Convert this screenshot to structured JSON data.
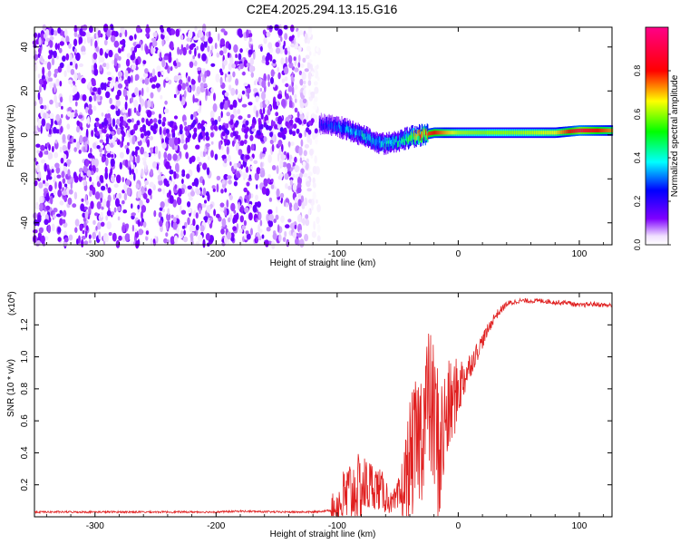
{
  "chart_data": [
    {
      "type": "heatmap",
      "title": "C2E4.2025.294.13.15.G16",
      "xlabel": "Height of straight line (km)",
      "ylabel": "Frequency (Hz)",
      "xlim": [
        -350,
        127
      ],
      "ylim": [
        -50,
        49
      ],
      "xticks": [
        -300,
        -200,
        -100,
        0,
        100
      ],
      "yticks": [
        -40,
        -20,
        0,
        20,
        40
      ],
      "colorbar": {
        "label": "Normalized spectral amplitude",
        "range": [
          0,
          1
        ],
        "ticks": [
          "0.0",
          "0.2",
          "0.4",
          "0.6",
          "0.8"
        ],
        "colors": [
          "#ffffff",
          "#7f00ff",
          "#0000ff",
          "#00ffff",
          "#00ff00",
          "#ffff00",
          "#ff0000",
          "#ff0088"
        ]
      },
      "noise_region": {
        "x_range": [
          -350,
          -115
        ],
        "freq_range": [
          -50,
          49
        ],
        "amplitude": 0.1
      },
      "ridge": {
        "x": [
          -115,
          -100,
          -90,
          -80,
          -70,
          -60,
          -50,
          -45,
          -40,
          -30,
          -20,
          -10,
          0,
          20,
          40,
          60,
          80,
          100,
          127
        ],
        "freq": [
          5,
          4,
          2,
          0,
          -3,
          -4,
          -3,
          -2,
          -1,
          0,
          1,
          1,
          1,
          1,
          1,
          1,
          1,
          2,
          2
        ],
        "amplitude": [
          0.22,
          0.3,
          0.35,
          0.38,
          0.38,
          0.4,
          0.42,
          0.45,
          0.55,
          0.75,
          0.8,
          0.7,
          0.62,
          0.6,
          0.6,
          0.62,
          0.66,
          0.9,
          0.72
        ]
      }
    },
    {
      "type": "line",
      "xlabel": "Height of straight line (km)",
      "ylabel": "SNR (10 * v/v)",
      "scale_label": "(x10",
      "scale_exponent": "4",
      "xlim": [
        -350,
        127
      ],
      "ylim": [
        0,
        1.4
      ],
      "xticks": [
        -300,
        -200,
        -100,
        0,
        100
      ],
      "yticks": [
        "0.2",
        "0.4",
        "0.6",
        "0.8",
        "1.0",
        "1.2"
      ],
      "series": [
        {
          "color": "#e02020",
          "x": [
            -350,
            -200,
            -180,
            -150,
            -120,
            -105,
            -95,
            -90,
            -80,
            -70,
            -60,
            -55,
            -50,
            -45,
            -40,
            -30,
            -25,
            -20,
            -15,
            -10,
            0,
            10,
            20,
            30,
            40,
            50,
            60,
            70,
            80,
            90,
            100,
            110,
            127
          ],
          "y": [
            0.03,
            0.03,
            0.035,
            0.03,
            0.03,
            0.04,
            0.1,
            0.15,
            0.18,
            0.2,
            0.14,
            0.08,
            0.1,
            0.18,
            0.35,
            0.55,
            0.75,
            0.6,
            0.4,
            0.62,
            0.8,
            0.95,
            1.1,
            1.25,
            1.33,
            1.35,
            1.35,
            1.35,
            1.34,
            1.34,
            1.32,
            1.33,
            1.32
          ],
          "noise": [
            0,
            0,
            0,
            0,
            0,
            0.08,
            0.2,
            0.22,
            0.22,
            0.15,
            0.12,
            0.06,
            0.12,
            0.25,
            0.38,
            0.45,
            0.45,
            0.5,
            0.5,
            0.35,
            0.2,
            0.08,
            0.05,
            0.03,
            0.02,
            0.015,
            0.015,
            0.015,
            0.015,
            0.015,
            0.015,
            0.015,
            0.015
          ]
        }
      ]
    }
  ]
}
